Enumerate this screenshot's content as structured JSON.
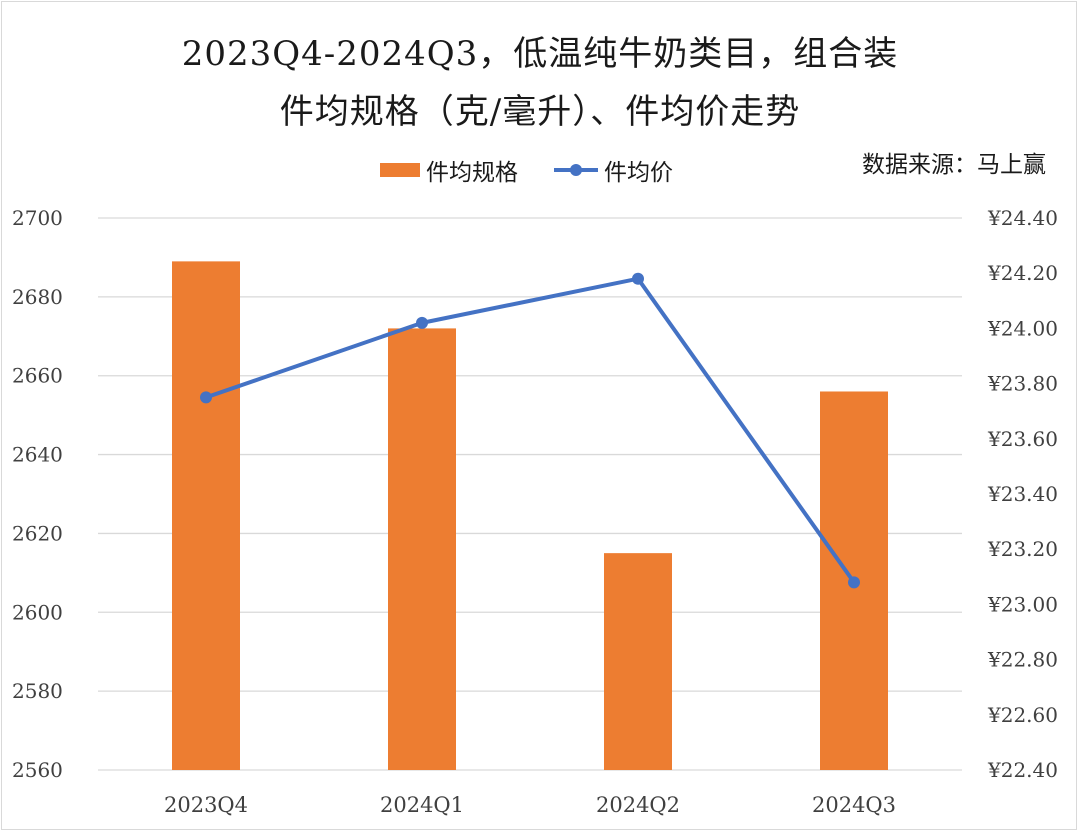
{
  "chart_data": {
    "type": "bar+line",
    "title": "2023Q4-2024Q3，低温纯牛奶类目，组合装",
    "subtitle": "件均规格（克/毫升）、件均价走势",
    "source": "数据来源：马上赢",
    "categories": [
      "2023Q4",
      "2024Q1",
      "2024Q2",
      "2024Q3"
    ],
    "series": [
      {
        "name": "件均规格",
        "type": "bar",
        "axis": "left",
        "color": "#ed7d31",
        "values": [
          2689,
          2672,
          2615,
          2656
        ]
      },
      {
        "name": "件均价",
        "type": "line",
        "axis": "right",
        "color": "#4472c4",
        "values": [
          23.75,
          24.02,
          24.18,
          23.08
        ]
      }
    ],
    "left_axis": {
      "min": 2560,
      "max": 2700,
      "step": 20,
      "tick_labels": [
        "2560",
        "2580",
        "2600",
        "2620",
        "2640",
        "2660",
        "2680",
        "2700"
      ]
    },
    "right_axis": {
      "min": 22.4,
      "max": 24.4,
      "step": 0.2,
      "tick_labels": [
        "¥22.40",
        "¥22.60",
        "¥22.80",
        "¥23.00",
        "¥23.20",
        "¥23.40",
        "¥23.60",
        "¥23.80",
        "¥24.00",
        "¥24.20",
        "¥24.40"
      ]
    },
    "grid": true,
    "legend_position": "top"
  }
}
